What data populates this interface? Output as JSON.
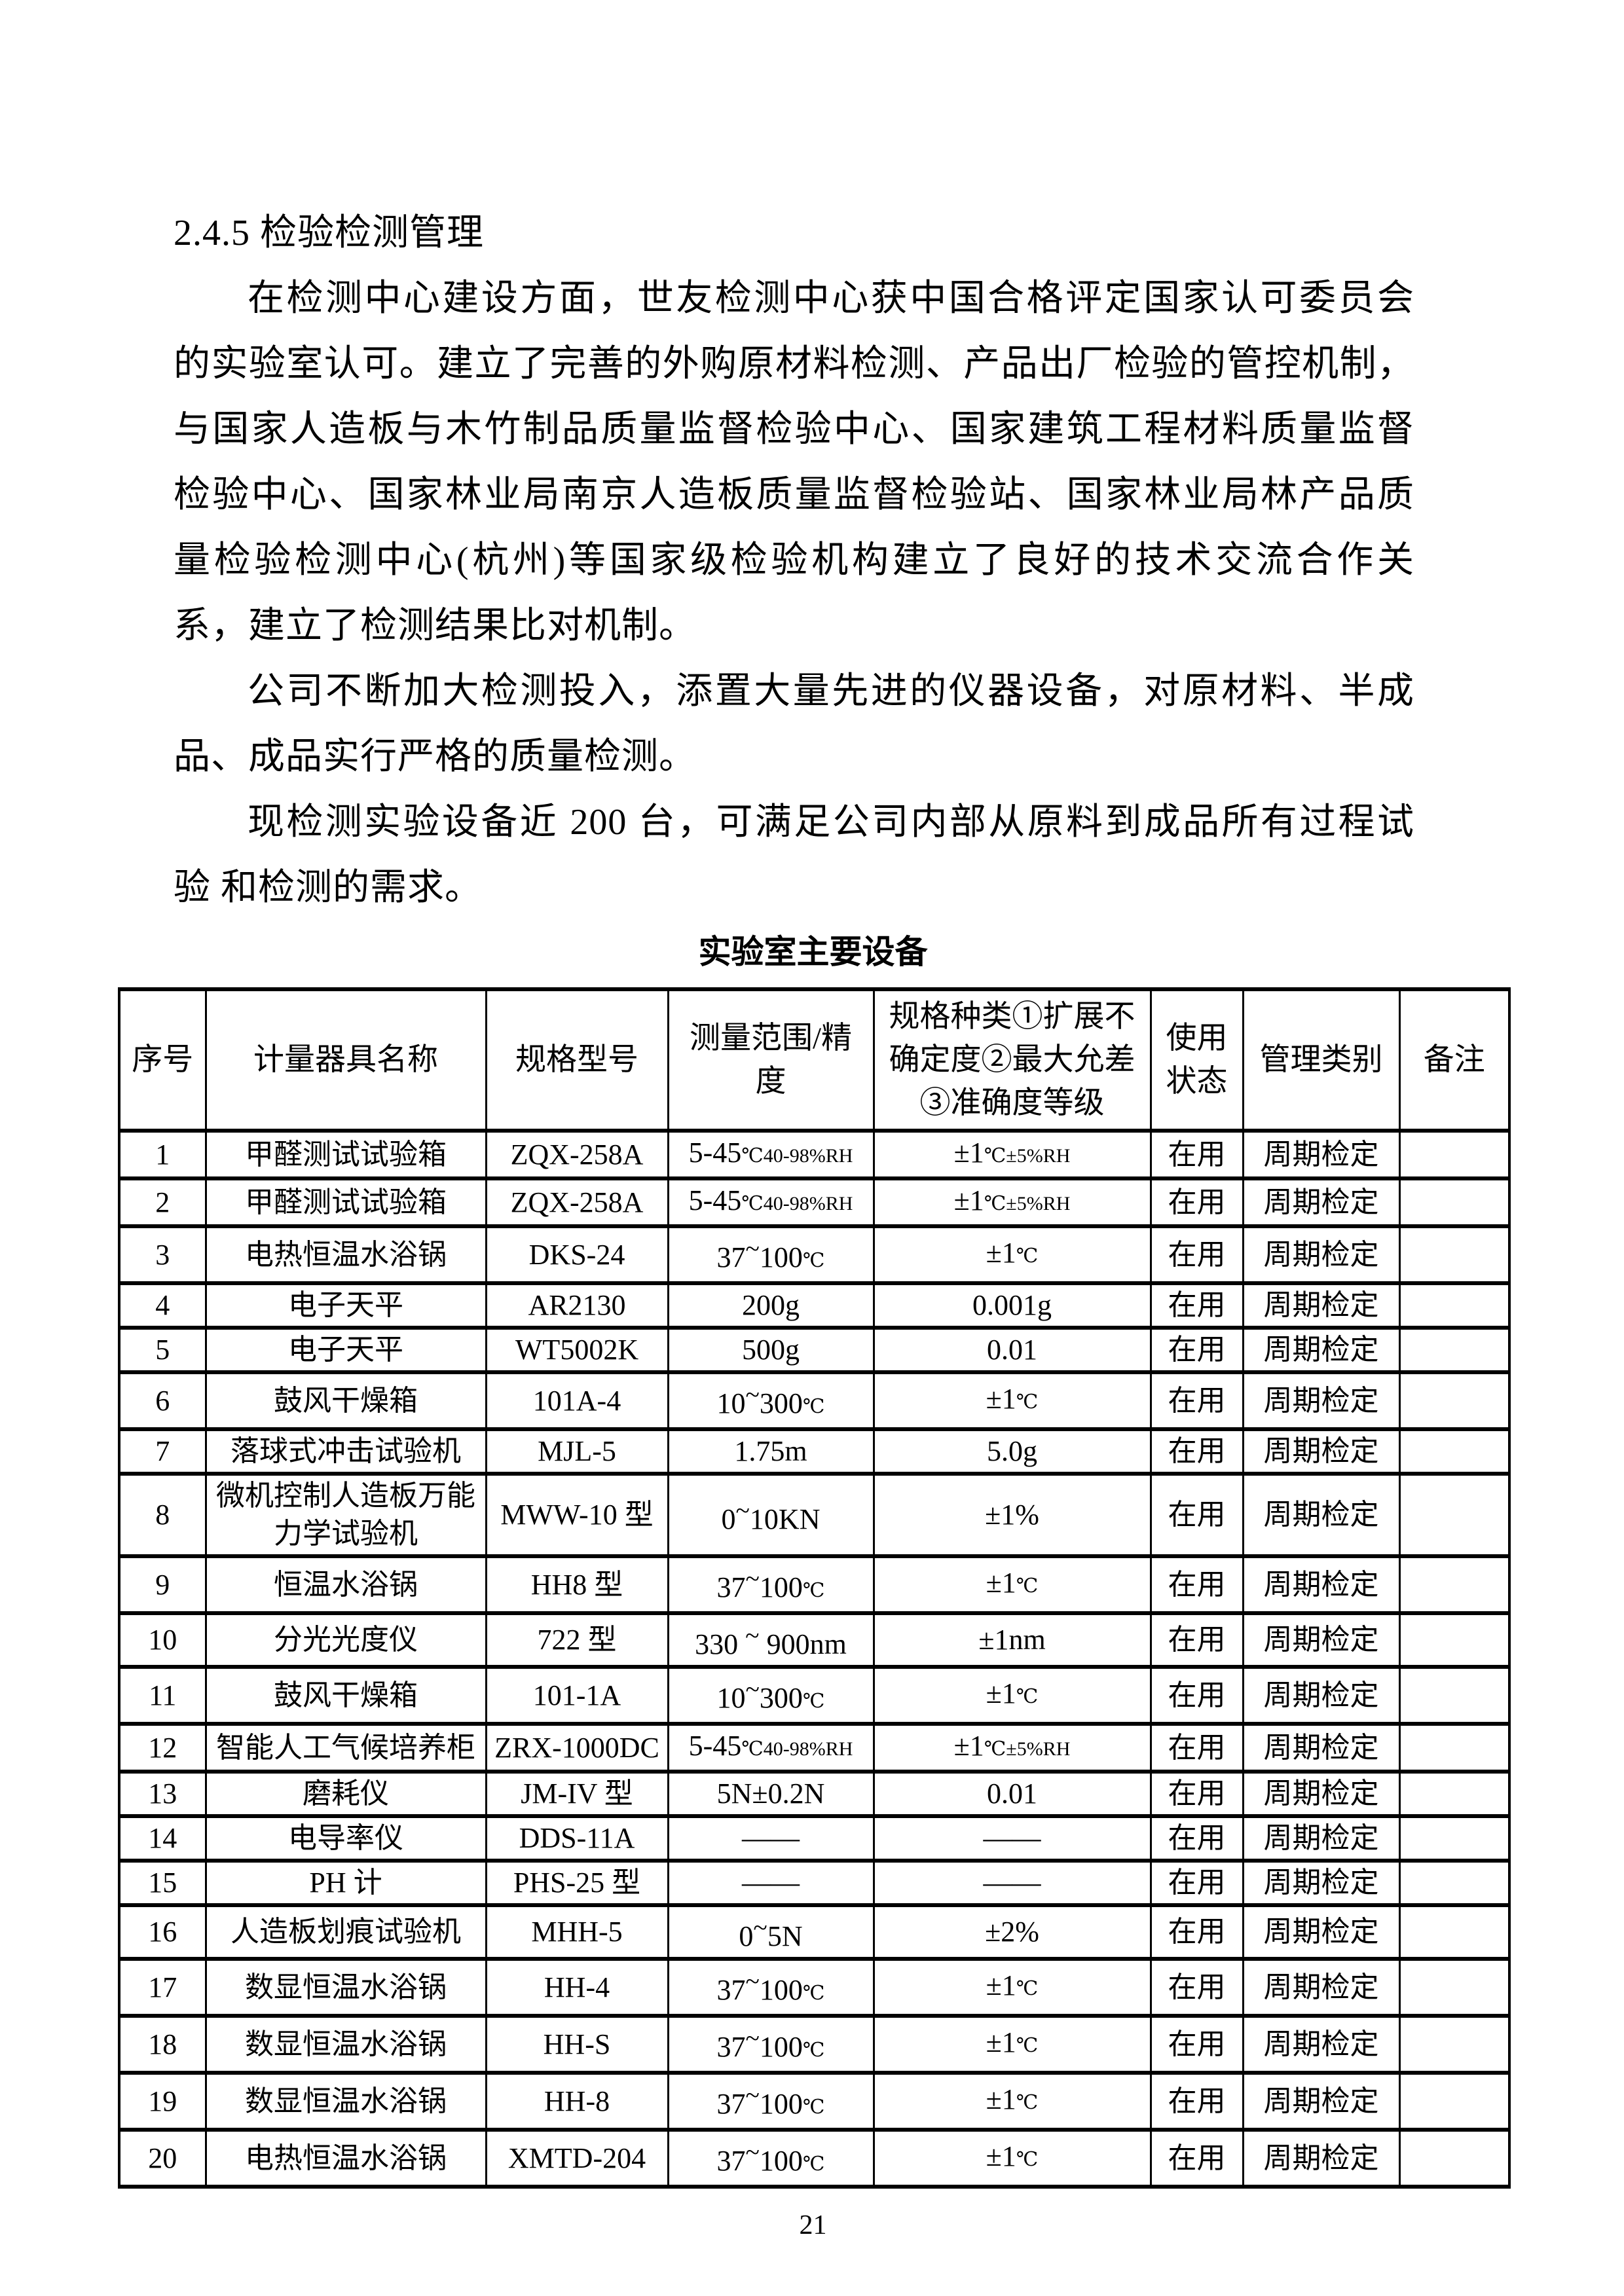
{
  "document": {
    "heading": "2.4.5 检验检测管理",
    "paragraphs": [
      {
        "lines": [
          "在检测中心建设方面，世友检测中心获中国合格评定国家认可委员会",
          "的实验室认可。建立了完善的外购原材料检测、产品出厂检验的管控机制，",
          "与国家人造板与木竹制品质量监督检验中心、国家建筑工程材料质量监督",
          "检验中心、国家林业局南京人造板质量监督检验站、国家林业局林产品质",
          "量检验检测中心(杭州)等国家级检验机构建立了良好的技术交流合作关",
          "系，建立了检测结果比对机制。"
        ]
      },
      {
        "lines": [
          "公司不断加大检测投入，添置大量先进的仪器设备，对原材料、半成",
          "品、成品实行严格的质量检测。"
        ]
      },
      {
        "lines": [
          "现检测实验设备近 200 台，可满足公司内部从原料到成品所有过程试",
          "验 和检测的需求。"
        ]
      }
    ],
    "page_number": "21"
  },
  "table": {
    "title": "实验室主要设备",
    "columns": [
      "序号",
      "计量器具名称",
      "规格型号",
      "测量范围/精度",
      "规格种类①扩展不确定度②最大允差③准确度等级",
      "使用状态",
      "管理类别",
      "备注"
    ],
    "rows": [
      [
        "1",
        "甲醛测试试验箱",
        "ZQX-258A",
        "5-45℃40-98%RH",
        "±1℃±5%RH",
        "在用",
        "周期检定",
        ""
      ],
      [
        "2",
        "甲醛测试试验箱",
        "ZQX-258A",
        "5-45℃40-98%RH",
        "±1℃±5%RH",
        "在用",
        "周期检定",
        ""
      ],
      [
        "3",
        "电热恒温水浴锅",
        "DKS-24",
        "37~100℃",
        "±1℃",
        "在用",
        "周期检定",
        ""
      ],
      [
        "4",
        "电子天平",
        "AR2130",
        "200g",
        "0.001g",
        "在用",
        "周期检定",
        ""
      ],
      [
        "5",
        "电子天平",
        "WT5002K",
        "500g",
        "0.01",
        "在用",
        "周期检定",
        ""
      ],
      [
        "6",
        "鼓风干燥箱",
        "101A-4",
        "10~300℃",
        "±1℃",
        "在用",
        "周期检定",
        ""
      ],
      [
        "7",
        "落球式冲击试验机",
        "MJL-5",
        "1.75m",
        "5.0g",
        "在用",
        "周期检定",
        ""
      ],
      [
        "8",
        "微机控制人造板万能力学试验机",
        "MWW-10 型",
        "0~10KN",
        "±1%",
        "在用",
        "周期检定",
        ""
      ],
      [
        "9",
        "恒温水浴锅",
        "HH8 型",
        "37~100℃",
        "±1℃",
        "在用",
        "周期检定",
        ""
      ],
      [
        "10",
        "分光光度仪",
        "722 型",
        "330 ~ 900nm",
        "±1nm",
        "在用",
        "周期检定",
        ""
      ],
      [
        "11",
        "鼓风干燥箱",
        "101-1A",
        "10~300℃",
        "±1℃",
        "在用",
        "周期检定",
        ""
      ],
      [
        "12",
        "智能人工气候培养柜",
        "ZRX-1000DC",
        "5-45℃40-98%RH",
        "±1℃±5%RH",
        "在用",
        "周期检定",
        ""
      ],
      [
        "13",
        "磨耗仪",
        "JM-IV 型",
        "5N±0.2N",
        "0.01",
        "在用",
        "周期检定",
        ""
      ],
      [
        "14",
        "电导率仪",
        "DDS-11A",
        "——",
        "——",
        "在用",
        "周期检定",
        ""
      ],
      [
        "15",
        "PH 计",
        "PHS-25 型",
        "——",
        "——",
        "在用",
        "周期检定",
        ""
      ],
      [
        "16",
        "人造板划痕试验机",
        "MHH-5",
        "0~5N",
        "±2%",
        "在用",
        "周期检定",
        ""
      ],
      [
        "17",
        "数显恒温水浴锅",
        "HH-4",
        "37~100℃",
        "±1℃",
        "在用",
        "周期检定",
        ""
      ],
      [
        "18",
        "数显恒温水浴锅",
        "HH-S",
        "37~100℃",
        "±1℃",
        "在用",
        "周期检定",
        ""
      ],
      [
        "19",
        "数显恒温水浴锅",
        "HH-8",
        "37~100℃",
        "±1℃",
        "在用",
        "周期检定",
        ""
      ],
      [
        "20",
        "电热恒温水浴锅",
        "XMTD-204",
        "37~100℃",
        "±1℃",
        "在用",
        "周期检定",
        ""
      ]
    ]
  },
  "colors": {
    "ink": "#000000",
    "paper": "#ffffff"
  }
}
